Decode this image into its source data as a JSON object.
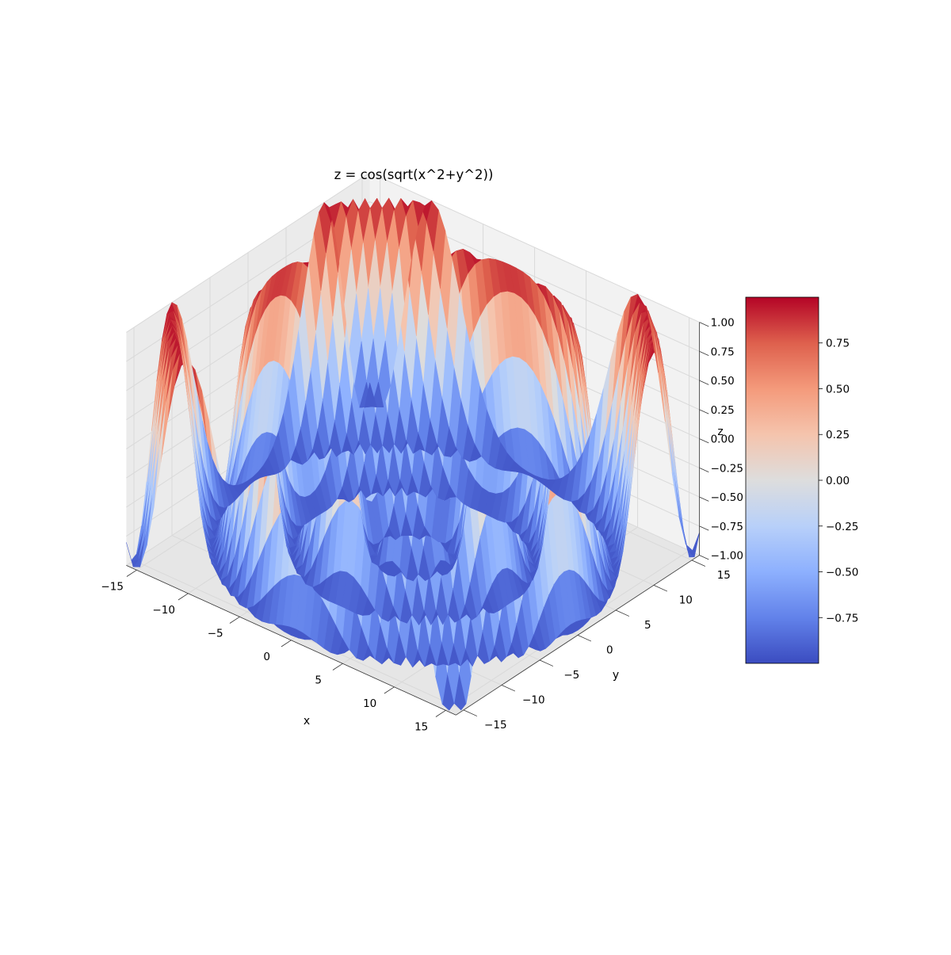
{
  "chart_data": {
    "type": "surface",
    "title": "z = cos(sqrt(x^2+y^2))",
    "function": "cos(sqrt(x^2+y^2))",
    "xlabel": "x",
    "ylabel": "y",
    "zlabel": "z",
    "xlim": [
      -16,
      16
    ],
    "ylim": [
      -16,
      16
    ],
    "zlim": [
      -1,
      1
    ],
    "x_ticks": [
      -15,
      -10,
      -5,
      0,
      5,
      10,
      15
    ],
    "y_ticks": [
      -15,
      -10,
      -5,
      0,
      5,
      10,
      15
    ],
    "z_ticks": [
      -1.0,
      -0.75,
      -0.5,
      -0.25,
      0.0,
      0.25,
      0.5,
      0.75,
      1.0
    ],
    "x_tick_labels": [
      "−15",
      "−10",
      "−5",
      "0",
      "5",
      "10",
      "15"
    ],
    "y_tick_labels": [
      "−15",
      "−10",
      "−5",
      "0",
      "5",
      "10",
      "15"
    ],
    "z_tick_labels": [
      "−1.00",
      "−0.75",
      "−0.50",
      "−0.25",
      "0.00",
      "0.25",
      "0.50",
      "0.75",
      "1.00"
    ],
    "grid": true,
    "colormap": "coolwarm",
    "colorbar": {
      "range": [
        -0.9999,
        0.9999
      ],
      "ticks": [
        -0.75,
        -0.5,
        -0.25,
        0.0,
        0.25,
        0.5,
        0.75
      ],
      "tick_labels": [
        "−0.75",
        "−0.50",
        "−0.25",
        "0.00",
        "0.25",
        "0.50",
        "0.75"
      ],
      "placement": "right"
    },
    "colors": {
      "low": "#3b4cc0",
      "mid": "#dddddd",
      "high": "#b40426",
      "pane": "#f2f2f2",
      "grid": "#d9d9d9"
    }
  }
}
